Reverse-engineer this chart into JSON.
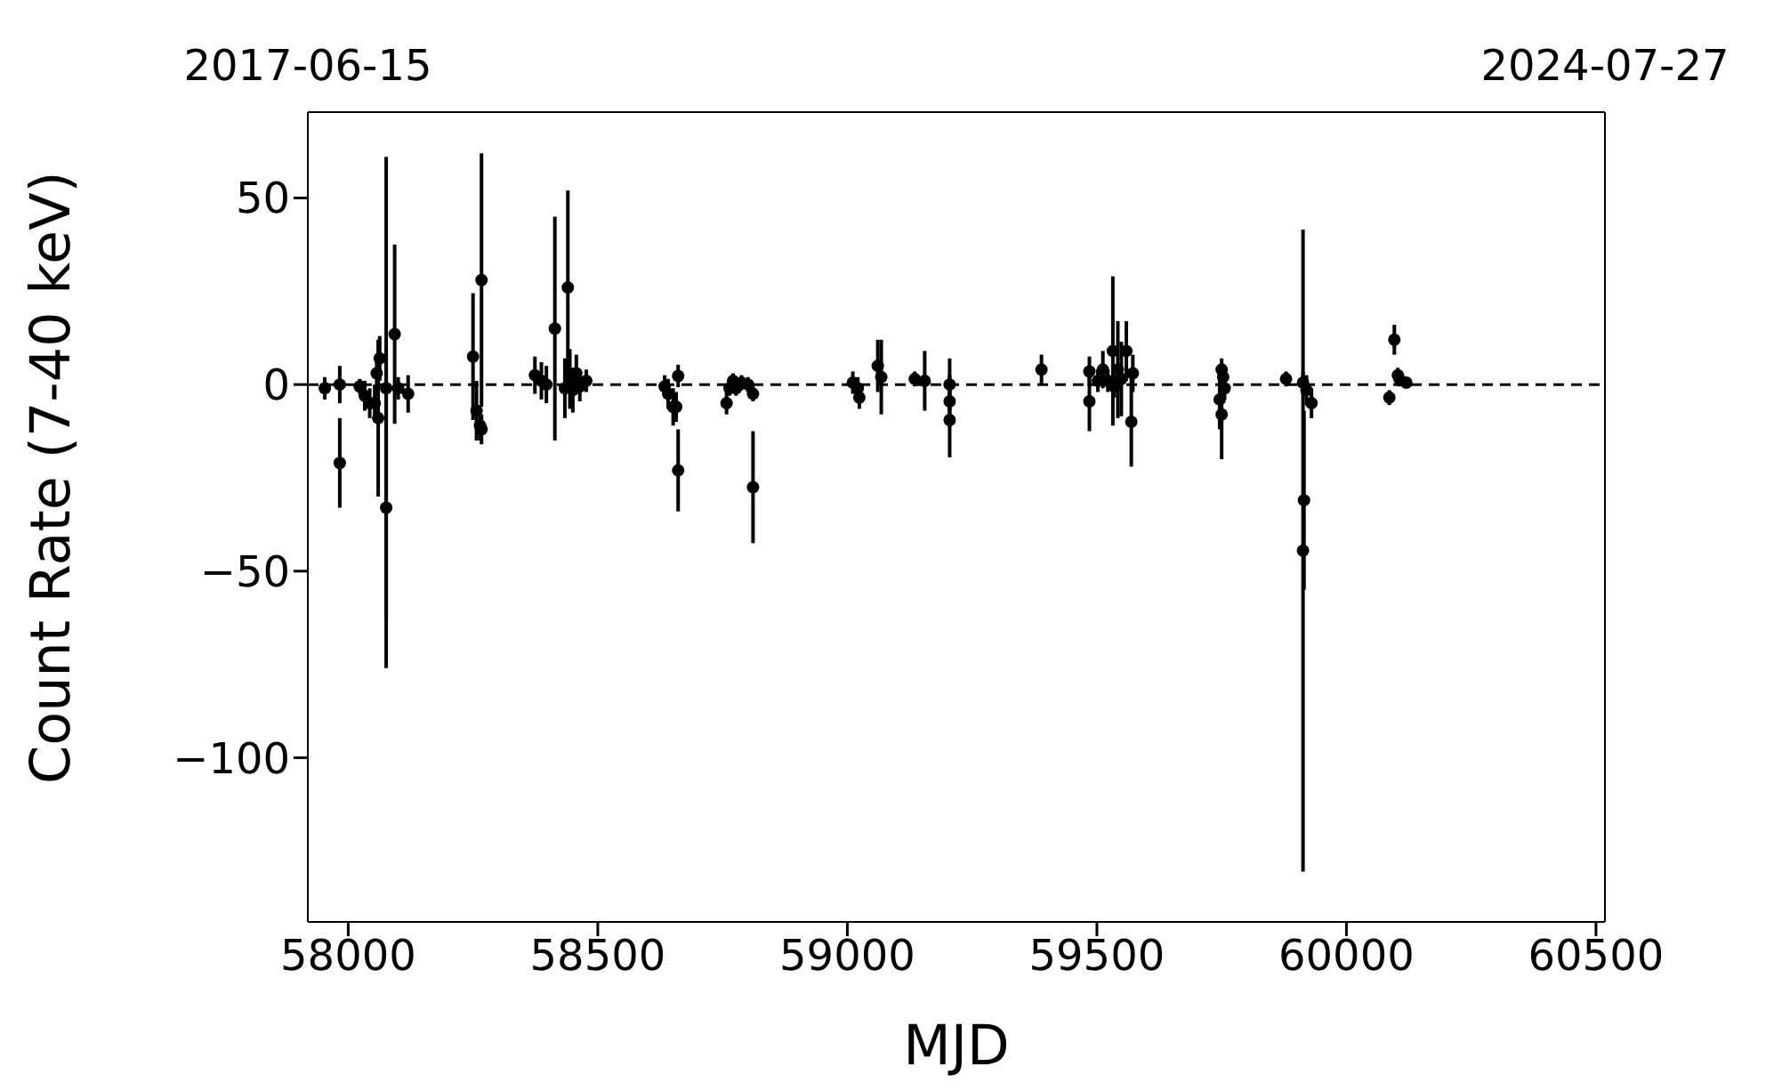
{
  "chart_data": {
    "type": "scatter",
    "xlabel": "MJD",
    "ylabel": "Count Rate (7-40 keV)",
    "color": "#000000",
    "marker": "circle",
    "grid": false,
    "legend": false,
    "x": [
      57953,
      57983,
      57983,
      58023,
      58033,
      58043,
      58053,
      58057,
      58060,
      58063,
      58076,
      58076,
      58093,
      58100,
      58120,
      58250,
      58257,
      58264,
      58267,
      58267,
      58374,
      58387,
      58397,
      58414,
      58434,
      58440,
      58444,
      58450,
      58457,
      58464,
      58477,
      58634,
      58641,
      58651,
      58657,
      58661,
      58661,
      58758,
      58764,
      58771,
      58777,
      58788,
      58801,
      58811,
      58811,
      59011,
      59021,
      59024,
      59061,
      59068,
      59135,
      59155,
      59205,
      59205,
      59205,
      59389,
      59485,
      59485,
      59502,
      59512,
      59522,
      59535,
      59532,
      59542,
      59549,
      59559,
      59569,
      59572,
      59746,
      59750,
      59753,
      59756,
      59750,
      59879,
      59913,
      59915,
      59913,
      59920,
      59930,
      60086,
      60096,
      60103,
      60106,
      60120
    ],
    "values": [
      -1,
      0,
      -21,
      -0.5,
      -3,
      -5,
      -5,
      3,
      -9,
      7,
      -33,
      -1,
      13.5,
      -1,
      -2.5,
      7.5,
      -7,
      -11,
      28,
      -12,
      2.5,
      1,
      0,
      15,
      -1,
      26,
      1.5,
      -1.5,
      3,
      -0.5,
      1,
      -0.5,
      -2.5,
      -6,
      -6,
      -23,
      2.3,
      -5,
      -1,
      1,
      -1,
      0.5,
      0,
      -2.5,
      -27.5,
      0.5,
      -1,
      -3.5,
      5,
      2,
      1.5,
      1,
      0,
      -4.5,
      -9.5,
      4,
      3.5,
      -4.5,
      1,
      4,
      1,
      -0.5,
      9,
      4,
      1.5,
      9,
      -10,
      3,
      -4,
      4,
      2,
      -1,
      -8,
      1.5,
      -44.5,
      -31,
      0.5,
      -1.5,
      -5,
      -3.5,
      12,
      2.5,
      1.5,
      0.5
    ],
    "errors": [
      3,
      5,
      12,
      2,
      4,
      4,
      5,
      5,
      21,
      6,
      43,
      62,
      24,
      3,
      5,
      17,
      8,
      4,
      34,
      4,
      5,
      5,
      5,
      30,
      8,
      26,
      8,
      6,
      5,
      4,
      3,
      3,
      4,
      5,
      4,
      11,
      3,
      3,
      2,
      2,
      2,
      2,
      2,
      2,
      15,
      3,
      3,
      3,
      7,
      10,
      2,
      8,
      7,
      7,
      10,
      4,
      4,
      8,
      3,
      5,
      3,
      3,
      20,
      13,
      10,
      8,
      12,
      5,
      8,
      3,
      3,
      3,
      12,
      2,
      86,
      24,
      3,
      4,
      4,
      2,
      4,
      2,
      2,
      1
    ],
    "xlim": [
      57919,
      60518
    ],
    "xticks": [
      58000,
      58500,
      59000,
      59500,
      60000,
      60500
    ],
    "ylim": [
      -144,
      73
    ],
    "yticks": [
      -100,
      -50,
      0,
      50
    ],
    "x2lim": [
      "2017-06-15",
      "2024-07-27"
    ],
    "x2ticks": [
      "2017-06-15",
      "2024-07-27"
    ],
    "ref_lines": [
      {
        "axis": "y",
        "value": 0,
        "label": null,
        "color": "#000000",
        "line_style": "dashed"
      }
    ]
  }
}
